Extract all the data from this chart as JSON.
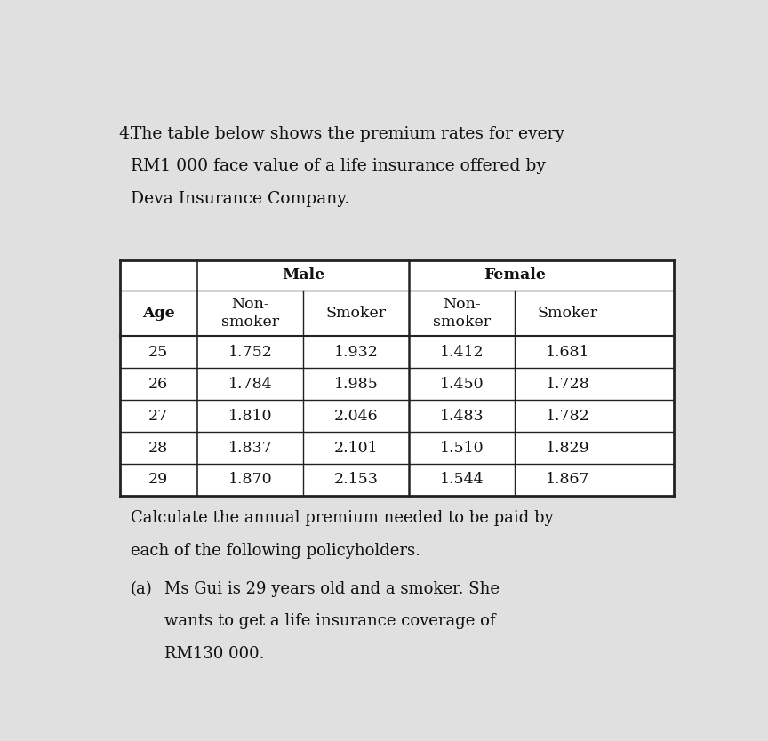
{
  "question_number": "4.",
  "intro_text": "The table below shows the premium rates for every\nRM1 000 face value of a life insurance offered by\nDeva Insurance Company.",
  "follow_text": "Calculate the annual premium needed to be paid by\neach of the following policyholders.",
  "part_a_label": "(a)",
  "part_a_line1": "Ms Gui is 29 years old and a smoker. She",
  "part_a_line2": "wants to get a life insurance coverage of",
  "part_a_line3": "RM130 000.",
  "col_headers_sub": [
    "Age",
    "Non-\nsmoker",
    "Smoker",
    "Non-\nsmoker",
    "Smoker"
  ],
  "rows": [
    [
      "25",
      "1.752",
      "1.932",
      "1.412",
      "1.681"
    ],
    [
      "26",
      "1.784",
      "1.985",
      "1.450",
      "1.728"
    ],
    [
      "27",
      "1.810",
      "2.046",
      "1.483",
      "1.782"
    ],
    [
      "28",
      "1.837",
      "2.101",
      "1.510",
      "1.829"
    ],
    [
      "29",
      "1.870",
      "2.153",
      "1.544",
      "1.867"
    ]
  ],
  "bg_color": "#e0e0e0",
  "text_color": "#111111",
  "font_size_intro": 13.5,
  "font_size_table": 12.5,
  "font_size_body": 13.0
}
